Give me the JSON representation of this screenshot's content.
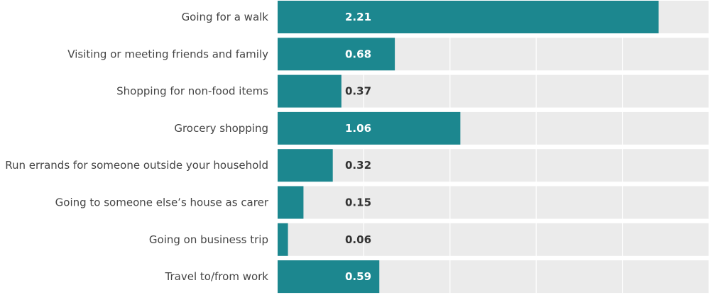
{
  "chart_data": {
    "type": "bar",
    "orientation": "horizontal",
    "categories": [
      "Going for a walk",
      "Visiting or meeting friends and family",
      "Shopping for non-food items",
      "Grocery shopping",
      "Run errands for someone outside your household",
      "Going to someone else’s house as carer",
      "Going on business trip",
      "Travel to/from work"
    ],
    "values": [
      2.21,
      0.68,
      0.37,
      1.06,
      0.32,
      0.15,
      0.06,
      0.59
    ],
    "value_labels": [
      "2.21",
      "0.68",
      "0.37",
      "1.06",
      "0.32",
      "0.15",
      "0.06",
      "0.59"
    ],
    "xlim": [
      0,
      2.5
    ],
    "gridlines": [
      0.5,
      1.0,
      1.5,
      2.0
    ],
    "grid": true,
    "title": "",
    "xlabel": "",
    "ylabel": ""
  },
  "colors": {
    "bar": "#1c878f",
    "background_band": "#ebebeb",
    "gridline": "#ffffff",
    "label_inside": "#ffffff",
    "label_outside": "#333333",
    "category_text": "#444444"
  }
}
